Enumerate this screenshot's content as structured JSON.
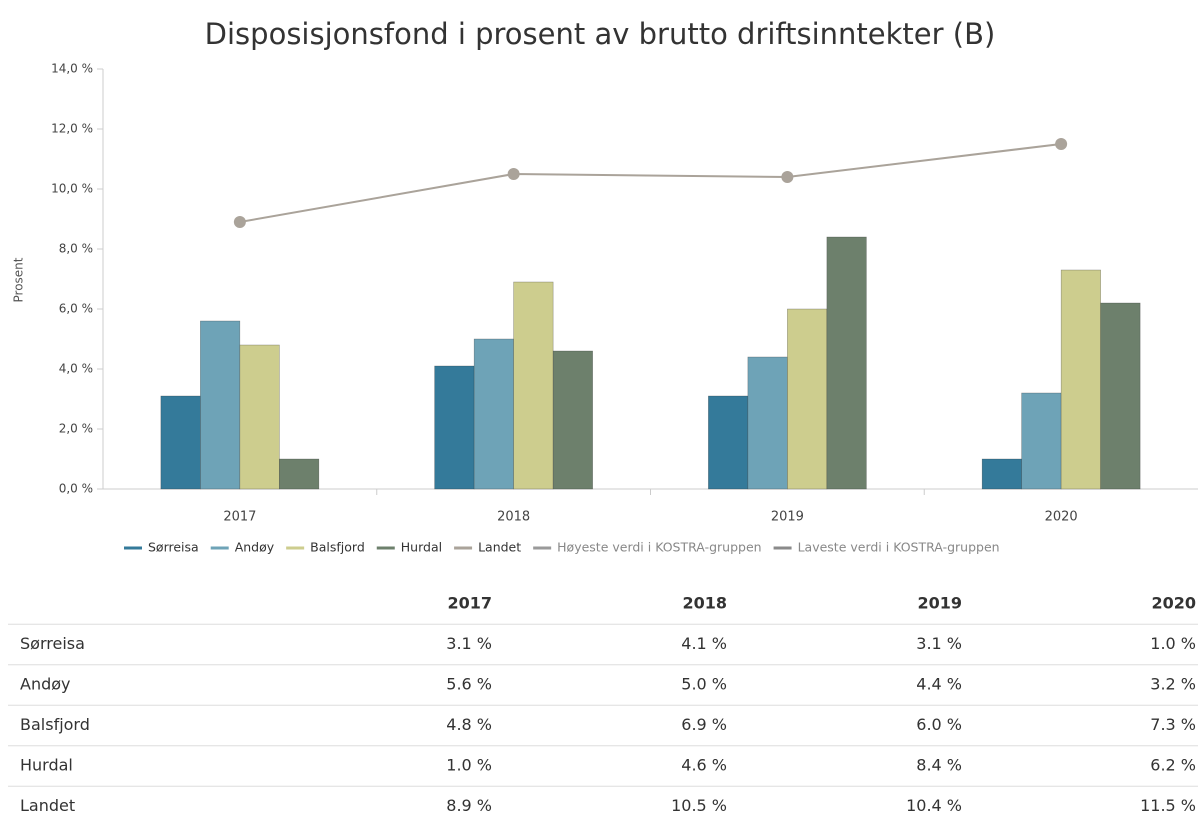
{
  "chart_data": {
    "type": "bar",
    "title": "Disposisjonsfond i prosent av brutto driftsinntekter (B)",
    "y_label": "Prosent",
    "categories": [
      "2017",
      "2018",
      "2019",
      "2020"
    ],
    "series": [
      {
        "name": "Sørreisa",
        "color": "#347a9a",
        "type": "bar",
        "values": [
          3.1,
          4.1,
          3.1,
          1.0
        ]
      },
      {
        "name": "Andøy",
        "color": "#6ea3b7",
        "type": "bar",
        "values": [
          5.6,
          5.0,
          4.4,
          3.2
        ]
      },
      {
        "name": "Balsfjord",
        "color": "#cdcd8e",
        "type": "bar",
        "values": [
          4.8,
          6.9,
          6.0,
          7.3
        ]
      },
      {
        "name": "Hurdal",
        "color": "#6d806c",
        "type": "bar",
        "values": [
          1.0,
          4.6,
          8.4,
          6.2
        ]
      },
      {
        "name": "Landet",
        "color": "#aaa39a",
        "type": "line",
        "values": [
          8.9,
          10.5,
          10.4,
          11.5
        ]
      },
      {
        "name": "Høyeste verdi i KOSTRA-gruppen",
        "color": "#9a9a9a",
        "type": "line",
        "values": [
          null,
          null,
          null,
          null
        ]
      },
      {
        "name": "Laveste verdi i KOSTRA-gruppen",
        "color": "#8a8a8a",
        "type": "line",
        "values": [
          null,
          null,
          null,
          null
        ]
      }
    ],
    "ylim": [
      0,
      14
    ],
    "yticks": [
      {
        "value": 0,
        "label": "0,0 %"
      },
      {
        "value": 2,
        "label": "2,0 %"
      },
      {
        "value": 4,
        "label": "4,0 %"
      },
      {
        "value": 6,
        "label": "6,0 %"
      },
      {
        "value": 8,
        "label": "8,0 %"
      },
      {
        "value": 10,
        "label": "10,0 %"
      },
      {
        "value": 12,
        "label": "12,0 %"
      },
      {
        "value": 14,
        "label": "14,0 %"
      }
    ],
    "grid": false,
    "legend": "bottom"
  },
  "table": {
    "columns": [
      "2017",
      "2018",
      "2019",
      "2020"
    ],
    "rows": [
      [
        "Sørreisa",
        "3.1 %",
        "4.1 %",
        "3.1 %",
        "1.0 %"
      ],
      [
        "Andøy",
        "5.6 %",
        "5.0 %",
        "4.4 %",
        "3.2 %"
      ],
      [
        "Balsfjord",
        "4.8 %",
        "6.9 %",
        "6.0 %",
        "7.3 %"
      ],
      [
        "Hurdal",
        "1.0 %",
        "4.6 %",
        "8.4 %",
        "6.2 %"
      ],
      [
        "Landet",
        "8.9 %",
        "10.5 %",
        "10.4 %",
        "11.5 %"
      ]
    ]
  }
}
